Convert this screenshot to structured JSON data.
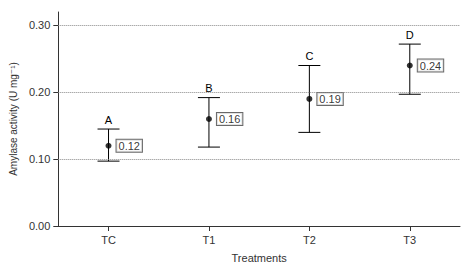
{
  "chart_data": {
    "type": "scatter",
    "x_label": "Treatments",
    "y_label": "Amylase activity (U mg⁻¹)",
    "categories": [
      "TC",
      "T1",
      "T2",
      "T3"
    ],
    "values": [
      0.12,
      0.16,
      0.19,
      0.24
    ],
    "lower": [
      0.097,
      0.118,
      0.14,
      0.197
    ],
    "upper": [
      0.145,
      0.192,
      0.24,
      0.272
    ],
    "annotations": [
      "A",
      "B",
      "C",
      "D"
    ],
    "color": "#000000",
    "marker": "circle",
    "ylim": [
      0,
      0.32
    ],
    "yticks": [
      {
        "value": 0,
        "label": "0.00"
      },
      {
        "value": 0.1,
        "label": "0.10"
      },
      {
        "value": 0.2,
        "label": "0.20"
      },
      {
        "value": 0.3,
        "label": "0.30"
      }
    ],
    "grid": true,
    "data_labels": true
  }
}
